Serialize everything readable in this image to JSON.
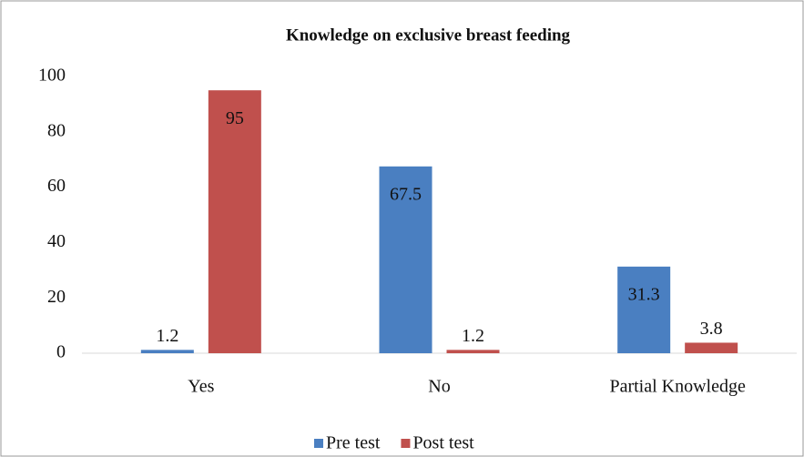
{
  "chart_data": {
    "type": "bar",
    "title": "Knowledge on exclusive breast feeding",
    "categories": [
      "Yes",
      "No",
      "Partial Knowledge"
    ],
    "series": [
      {
        "name": "Pre test",
        "color": "#4a7fc1",
        "values": [
          1.2,
          67.5,
          31.3
        ]
      },
      {
        "name": "Post test",
        "color": "#c0504d",
        "values": [
          95,
          1.2,
          3.8
        ]
      }
    ],
    "ylim": [
      0,
      100
    ],
    "yticks": [
      0,
      20,
      40,
      60,
      80,
      100
    ],
    "grid": false,
    "legend": "bottom"
  }
}
